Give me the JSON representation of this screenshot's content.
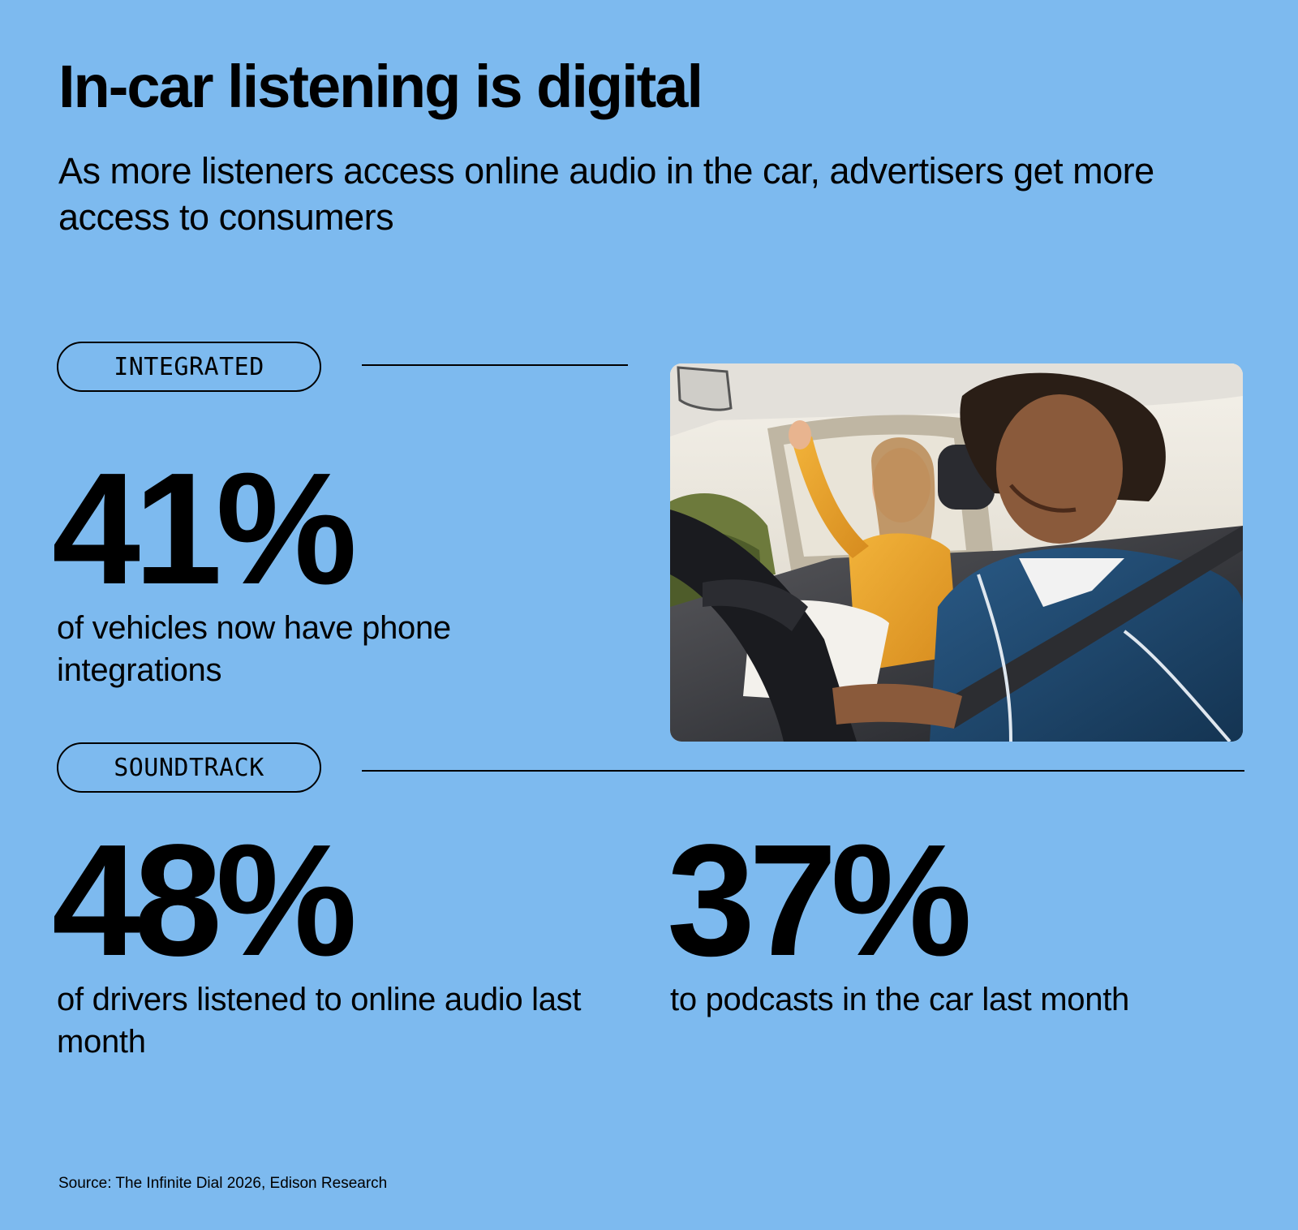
{
  "header": {
    "title": "In-car listening is digital",
    "subtitle": "As more listeners access online audio in the car, advertisers get more access to consumers"
  },
  "sections": {
    "integrated": {
      "tag": "INTEGRATED",
      "stat_value": "41%",
      "stat_label": "of vehicles now have phone integrations"
    },
    "soundtrack": {
      "tag": "SOUNDTRACK",
      "stats": [
        {
          "value": "48%",
          "label": "of drivers listened to online audio last month"
        },
        {
          "value": "37%",
          "label": "to podcasts in the car last month"
        }
      ]
    }
  },
  "photo": {
    "description_icon": "car-passengers-photo"
  },
  "footer": {
    "source": "Source: The Infinite Dial 2026, Edison Research"
  },
  "colors": {
    "background": "#7dbaef",
    "text": "#000000"
  }
}
